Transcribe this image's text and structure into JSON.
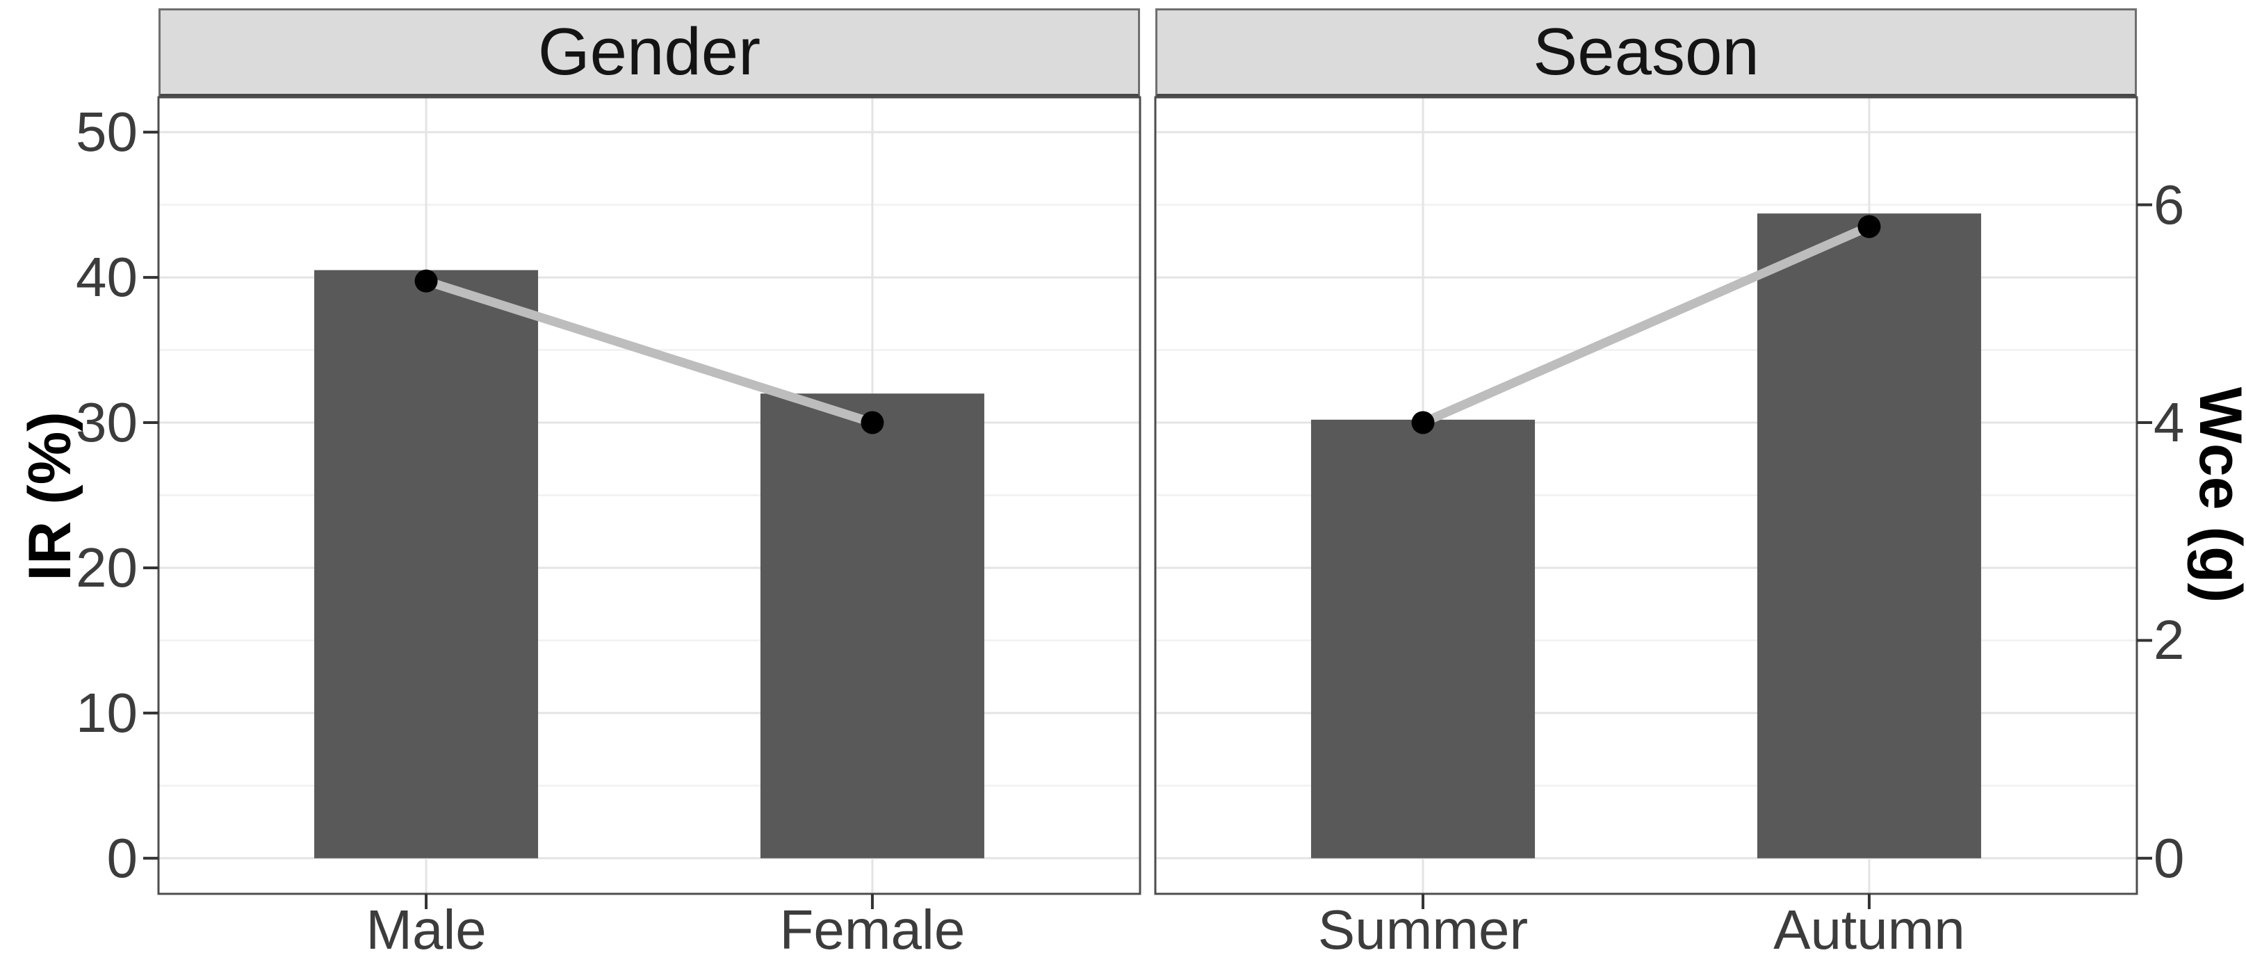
{
  "chart_data": {
    "type": "bar",
    "title": "",
    "facets": [
      {
        "label": "Gender",
        "categories": [
          "Male",
          "Female"
        ],
        "series": [
          {
            "name": "IR (%)",
            "type": "bar",
            "axis": "left",
            "values": [
              40.5,
              32.0
            ]
          },
          {
            "name": "Wce (g)",
            "type": "line+point",
            "axis": "right",
            "values": [
              5.3,
              4.0
            ]
          }
        ]
      },
      {
        "label": "Season",
        "categories": [
          "Summer",
          "Autumn"
        ],
        "series": [
          {
            "name": "IR (%)",
            "type": "bar",
            "axis": "left",
            "values": [
              30.2,
              44.4
            ]
          },
          {
            "name": "Wce (g)",
            "type": "line+point",
            "axis": "right",
            "values": [
              4.0,
              5.8
            ]
          }
        ]
      }
    ],
    "ylabel": "IR (%)",
    "ylabel_right": "Wce (g)",
    "y_left_ticks": [
      0,
      10,
      20,
      30,
      40,
      50
    ],
    "y_left_minor_ticks": [
      5,
      15,
      25,
      35,
      45
    ],
    "y_right_ticks": [
      0,
      2,
      4,
      6
    ],
    "y_left_range": [
      -2.45,
      52.4
    ],
    "wce_to_ir_factor": 7.5,
    "xlabel": "",
    "grid": "horizontal major+minor, vertical major at category centers",
    "legend": "none",
    "colors": {
      "bar": "#595959",
      "point": "#000000",
      "connector_line": "#BDBDBD",
      "strip_background": "#DBDBDB",
      "strip_text": "#141414",
      "panel_border": "#4D4D4D",
      "grid_major": "#E4E4E4",
      "grid_minor": "#F1F1F1",
      "axis_text": "#3C3C3C",
      "tick_mark": "#333333",
      "axis_title": "#000000",
      "panel_background": "#FFFFFF"
    }
  }
}
